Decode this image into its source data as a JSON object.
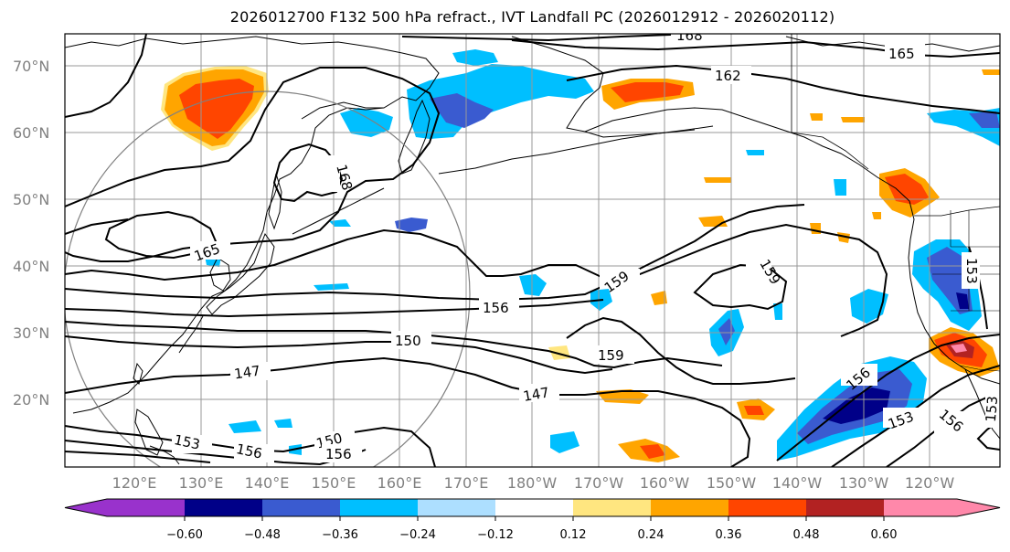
{
  "title": "2026012700 F132 500 hPa refract., IVT Landfall PC (2026012912 - 2026020112)",
  "latitude_labels": [
    "70°N",
    "60°N",
    "50°N",
    "40°N",
    "30°N",
    "20°N"
  ],
  "longitude_labels": [
    "120°E",
    "130°E",
    "140°E",
    "150°E",
    "160°E",
    "170°E",
    "180°W",
    "170°W",
    "160°W",
    "150°W",
    "140°W",
    "130°W",
    "120°W"
  ],
  "contour_labels": [
    "168",
    "165",
    "162",
    "168",
    "165",
    "159",
    "159",
    "156",
    "150",
    "159",
    "147",
    "147",
    "156",
    "153",
    "156",
    "153",
    "156",
    "150",
    "153",
    "153",
    "156"
  ],
  "colorbar": {
    "tick_labels": [
      "−0.60",
      "−0.48",
      "−0.36",
      "−0.24",
      "−0.12",
      "0.12",
      "0.24",
      "0.36",
      "0.48",
      "0.60"
    ],
    "colors": {
      "under": "#9932CC",
      "b1": "#9932CC",
      "b2": "#000088",
      "b3": "#3A5BD0",
      "b4": "#00BFFF",
      "b5": "#ADDFFF",
      "b6": "#FFFFFF",
      "b7": "#FFE680",
      "b8": "#FFA500",
      "b9": "#FF4500",
      "b10": "#B22222",
      "b11": "#FF88AA",
      "over": "#FF88AA"
    }
  }
}
